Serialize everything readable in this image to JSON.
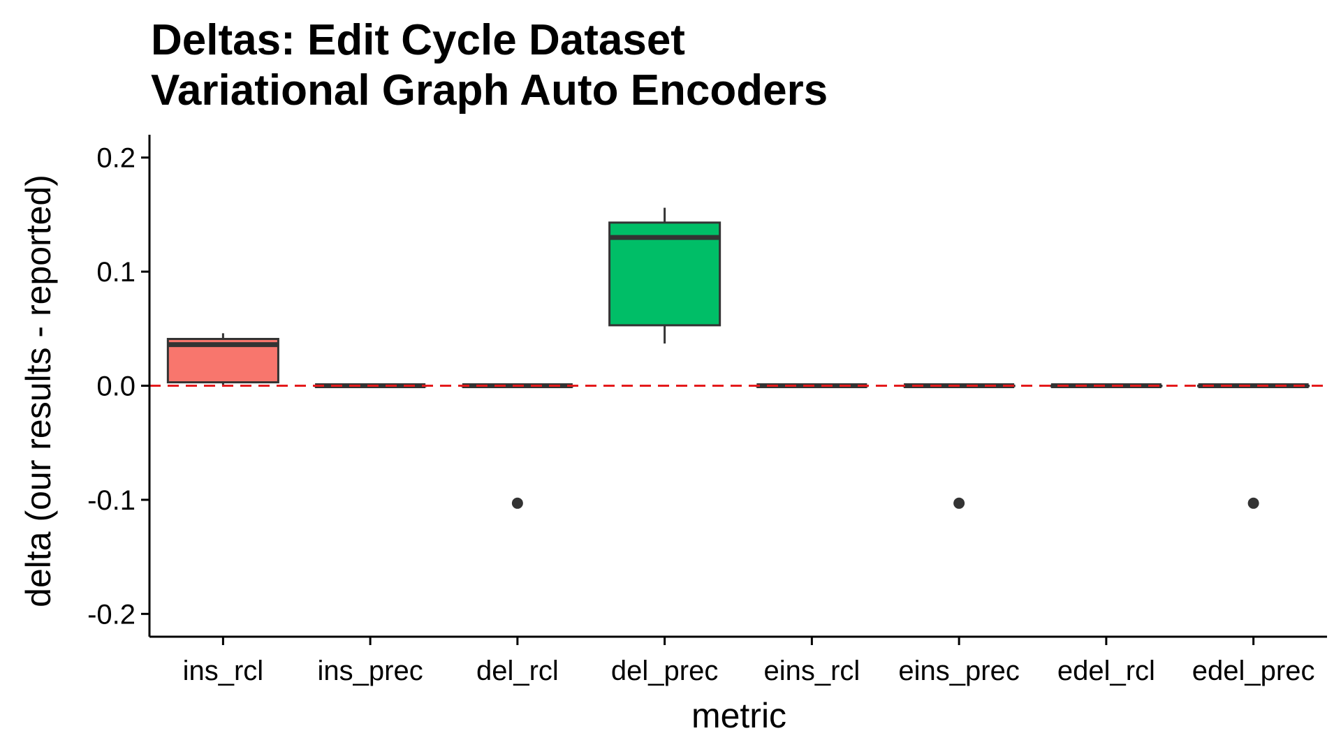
{
  "chart_data": {
    "type": "box",
    "title_lines": [
      "Deltas: Edit Cycle Dataset",
      "Variational Graph Auto Encoders"
    ],
    "xlabel": "metric",
    "ylabel": "delta (our results - reported)",
    "ylim": [
      -0.22,
      0.22
    ],
    "y_ticks": [
      0.2,
      0.1,
      0.0,
      -0.1,
      -0.2
    ],
    "y_tick_labels": [
      "0.2",
      "0.1",
      "0.0",
      "-0.1",
      "-0.2"
    ],
    "reference_line": {
      "y": 0.0,
      "style": "dashed",
      "color": "#e41a1c"
    },
    "grid": false,
    "categories": [
      "ins_rcl",
      "ins_prec",
      "del_rcl",
      "del_prec",
      "eins_rcl",
      "eins_prec",
      "edel_rcl",
      "edel_prec"
    ],
    "boxes": [
      {
        "category": "ins_rcl",
        "min": 0.0,
        "q1": 0.003,
        "median": 0.036,
        "q3": 0.041,
        "max": 0.046,
        "outliers": [],
        "fill": "#f8766d"
      },
      {
        "category": "ins_prec",
        "min": 0.0,
        "q1": 0.0,
        "median": 0.0,
        "q3": 0.0,
        "max": 0.0,
        "outliers": [],
        "fill": "#cd9600"
      },
      {
        "category": "del_rcl",
        "min": 0.0,
        "q1": 0.0,
        "median": 0.0,
        "q3": 0.0,
        "max": 0.0,
        "outliers": [
          -0.103
        ],
        "fill": "#7cae00"
      },
      {
        "category": "del_prec",
        "min": 0.037,
        "q1": 0.053,
        "median": 0.13,
        "q3": 0.143,
        "max": 0.156,
        "outliers": [],
        "fill": "#00be67"
      },
      {
        "category": "eins_rcl",
        "min": 0.0,
        "q1": 0.0,
        "median": 0.0,
        "q3": 0.0,
        "max": 0.0,
        "outliers": [],
        "fill": "#00bfc4"
      },
      {
        "category": "eins_prec",
        "min": 0.0,
        "q1": 0.0,
        "median": 0.0,
        "q3": 0.0,
        "max": 0.0,
        "outliers": [
          -0.103
        ],
        "fill": "#00a9ff"
      },
      {
        "category": "edel_rcl",
        "min": 0.0,
        "q1": 0.0,
        "median": 0.0,
        "q3": 0.0,
        "max": 0.0,
        "outliers": [],
        "fill": "#c77cff"
      },
      {
        "category": "edel_prec",
        "min": 0.0,
        "q1": 0.0,
        "median": 0.0,
        "q3": 0.0,
        "max": 0.0,
        "outliers": [
          -0.103
        ],
        "fill": "#ff61cc"
      }
    ],
    "colors": {
      "box_line": "#333333",
      "axis": "#000000",
      "outlier": "#333333"
    }
  }
}
